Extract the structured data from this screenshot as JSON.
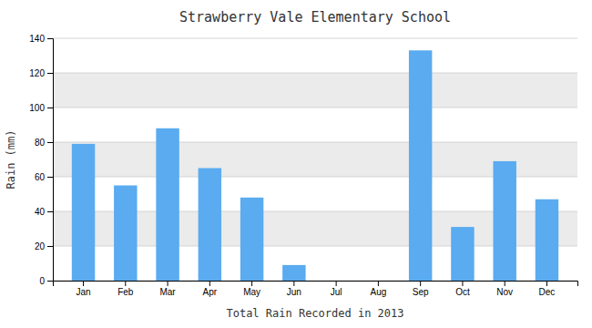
{
  "chart_data": {
    "type": "bar",
    "title": "Strawberry Vale Elementary School",
    "xlabel": "Total Rain Recorded in 2013",
    "ylabel": "Rain (mm)",
    "categories": [
      "Jan",
      "Feb",
      "Mar",
      "Apr",
      "May",
      "Jun",
      "Jul",
      "Aug",
      "Sep",
      "Oct",
      "Nov",
      "Dec"
    ],
    "values": [
      79,
      55,
      88,
      65,
      48,
      9,
      0,
      0,
      133,
      31,
      69,
      47
    ],
    "color": "#5aabf0",
    "ylim": [
      0,
      140
    ],
    "yticks": [
      0,
      20,
      40,
      60,
      80,
      100,
      120,
      140
    ],
    "grid": true
  }
}
